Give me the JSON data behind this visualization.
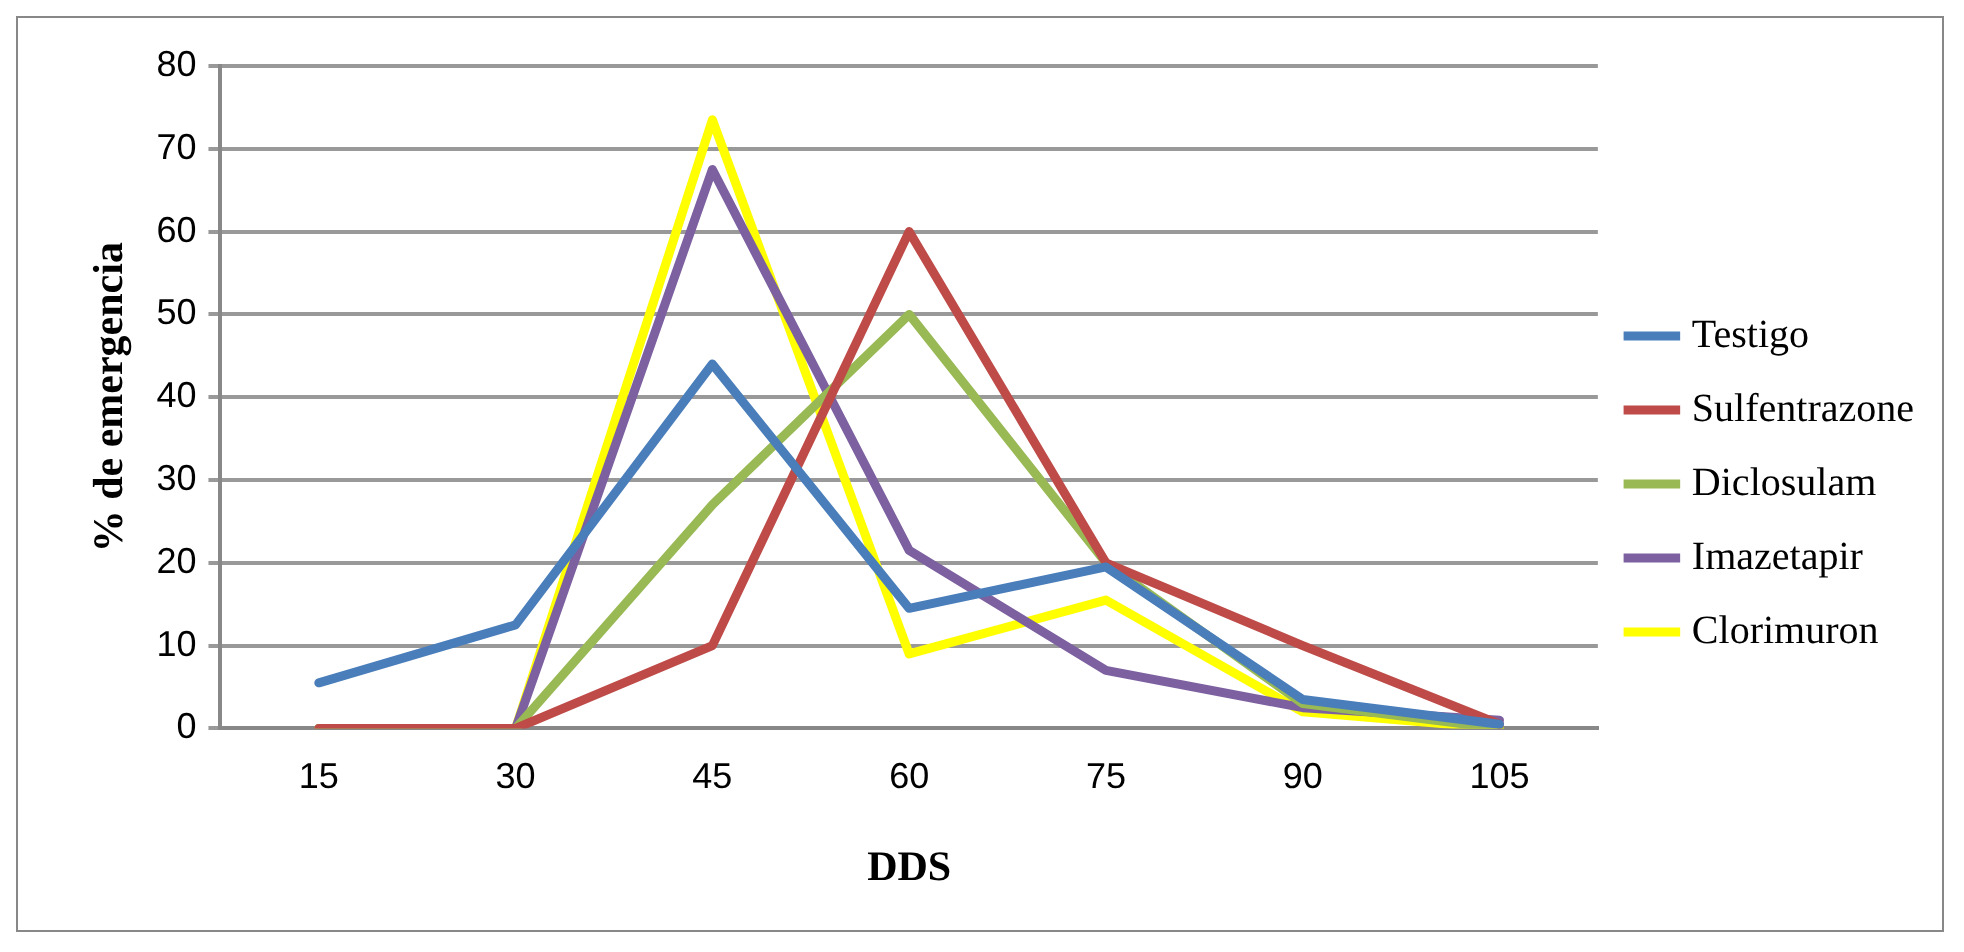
{
  "chart_data": {
    "type": "line",
    "xlabel": "DDS",
    "ylabel": "% de emergencia",
    "categories": [
      "15",
      "30",
      "45",
      "60",
      "75",
      "90",
      "105"
    ],
    "series": [
      {
        "name": "Testigo",
        "color": "#4a7ebb",
        "values": [
          5.5,
          12.5,
          44,
          14.5,
          19.5,
          3.5,
          0.5
        ]
      },
      {
        "name": "Sulfentrazone",
        "color": "#be4b48",
        "values": [
          0,
          0,
          10,
          60,
          20,
          10,
          0.5
        ]
      },
      {
        "name": "Diclosulam",
        "color": "#98b954",
        "values": [
          0,
          0,
          27,
          50,
          20,
          3,
          0
        ]
      },
      {
        "name": "Imazetapir",
        "color": "#7d60a0",
        "values": [
          0,
          0,
          67.5,
          21.5,
          7,
          2.5,
          1
        ]
      },
      {
        "name": "Clorimuron",
        "color": "#ffff00",
        "values": [
          0,
          0,
          73.5,
          9,
          15.5,
          2,
          0
        ]
      }
    ],
    "ylim": [
      0,
      80
    ],
    "yticks": [
      0,
      10,
      20,
      30,
      40,
      50,
      60,
      70,
      80
    ],
    "grid": "y",
    "legend": "right",
    "marker": "none",
    "line_style": "solid"
  }
}
